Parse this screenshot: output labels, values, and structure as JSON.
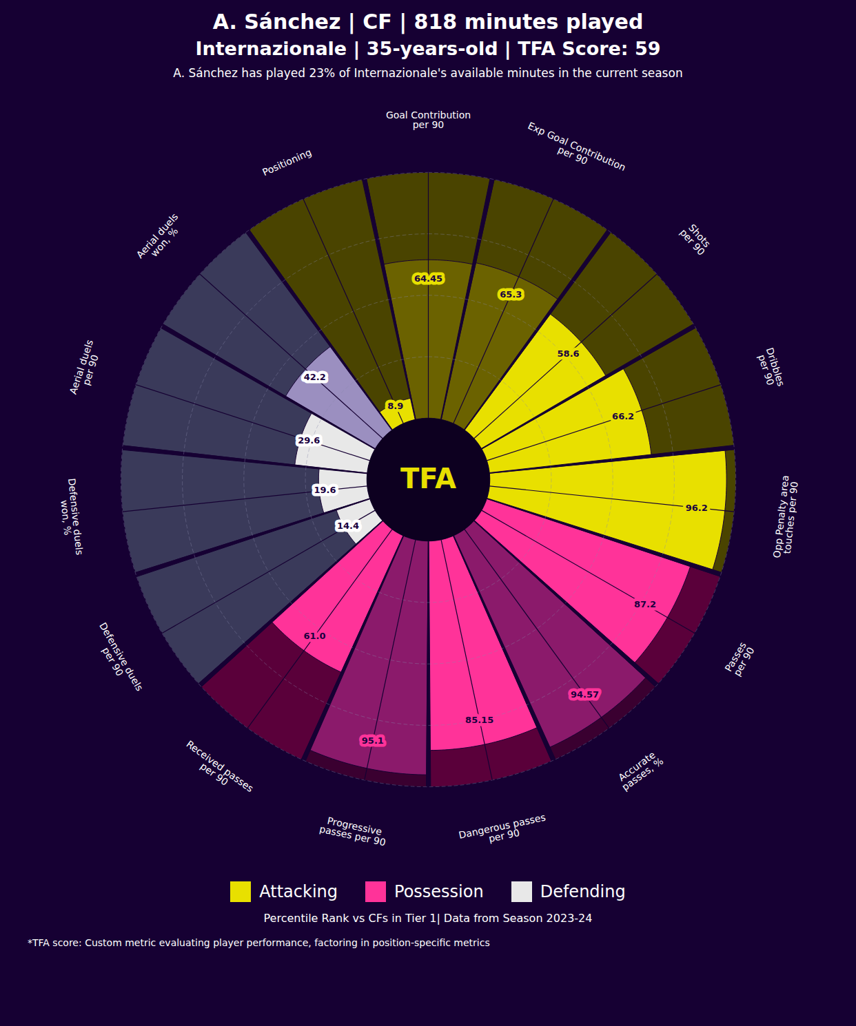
{
  "chart_data": {
    "type": "polar_bar",
    "title": "A. Sánchez | CF | 818 minutes played\nInternazionale | 35-years-old | TFA Score: 59",
    "subtitle": "A. Sánchez has played 23% of Internazionale's available minutes in the current season",
    "annotations": [
      "Percentile Rank vs CFs in Tier 1| Data from Season 2023-24",
      "*TFA score: Custom metric evaluating player performance, factoring in position-specific metrics"
    ],
    "center_label": "TFA",
    "categories": [
      "Goal Contribution\nper 90",
      "Exp Goal Contribution\nper 90",
      "Shots\nper 90",
      "Dribbles\nper 90",
      "Opp Penalty area\ntouches per 90",
      "Passes\nper 90",
      "Accurate\npasses, %",
      "Dangerous passes\nper 90",
      "Progressive\npasses per 90",
      "Received passes\nper 90",
      "Defensive duels\nper 90",
      "Defensive duels\nwon, %",
      "Aerial duels\nper 90",
      "Aerial duels\nwon, %",
      "Positioning"
    ],
    "values": [
      64.45,
      65.3,
      58.6,
      66.2,
      96.2,
      87.2,
      94.57,
      85.15,
      95.1,
      61.0,
      14.4,
      19.6,
      29.6,
      42.2,
      8.9
    ],
    "value_labels": [
      "64.45",
      "65.3",
      "58.6",
      "66.2",
      "96.2",
      "87.2",
      "94.57",
      "85.15",
      "95.1",
      "61.0",
      "14.4",
      "19.6",
      "29.6",
      "42.2",
      "8.9"
    ],
    "colors": [
      "#6b6200",
      "#6b6200",
      "#e8e000",
      "#e8e000",
      "#e8e000",
      "#ff3399",
      "#8b1a6b",
      "#ff3399",
      "#8b1a6b",
      "#ff3399",
      "#e8e8e8",
      "#e8e8e8",
      "#e8e8e8",
      "#9b8fc0",
      "#e8e000"
    ],
    "track_colors": [
      "#4a4400",
      "#4a4400",
      "#4a4400",
      "#4a4400",
      "#4a4400",
      "#5a003a",
      "#3a0030",
      "#5a003a",
      "#3a0030",
      "#5a003a",
      "#3a3a5a",
      "#3a3a5a",
      "#3a3a5a",
      "#3a3a5a",
      "#4a4400"
    ],
    "label_box_colors": [
      "#e8e000",
      "#e8e000",
      "#e8e000",
      "#e8e000",
      "#e8e000",
      "#ff3399",
      "#ff3399",
      "#ff3399",
      "#ff3399",
      "#ff3399",
      "#ffffff",
      "#ffffff",
      "#ffffff",
      "#ffffff",
      "#e8e000"
    ],
    "label_text_colors": [
      "#1a0040",
      "#1a0040",
      "#1a0040",
      "#1a0040",
      "#1a0040",
      "#1a0040",
      "#1a0040",
      "#1a0040",
      "#1a0040",
      "#1a0040",
      "#1a0040",
      "#1a0040",
      "#1a0040",
      "#1a0040",
      "#1a0040"
    ],
    "legend_items": [
      {
        "name": "Attacking",
        "color": "#e8e000"
      },
      {
        "name": "Possession",
        "color": "#ff3399"
      },
      {
        "name": "Defending",
        "color": "#e8e8e8"
      }
    ],
    "ylim": [
      0,
      100
    ],
    "yticks": [
      0,
      25,
      50,
      75,
      100
    ],
    "grid": true,
    "tick_labels": false,
    "data_labels": true
  }
}
